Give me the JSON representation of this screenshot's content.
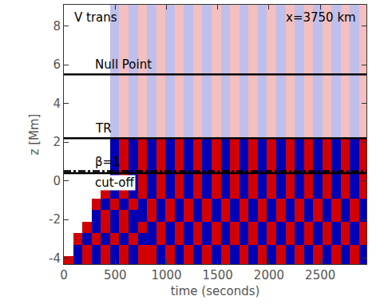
{
  "chart_data": {
    "type": "heatmap",
    "title": "V trans",
    "subtitle": "x=3750 km",
    "x_label": "time (seconds)",
    "y_label": "z [Mm]",
    "xlim": [
      0,
      2950
    ],
    "xticks": [
      0,
      500,
      1000,
      1500,
      2000,
      2500
    ],
    "ylim": [
      -4.3,
      9.1
    ],
    "yticks": [
      -4,
      -2,
      0,
      2,
      4,
      6,
      8
    ],
    "zlim": [
      -1,
      1
    ],
    "x": [
      45,
      135,
      225,
      315,
      405,
      495,
      585,
      675,
      765,
      855,
      945,
      1035,
      1125,
      1215,
      1305,
      1395,
      1485,
      1575,
      1665,
      1755,
      1845,
      1935,
      2025,
      2115,
      2205,
      2295,
      2385,
      2475,
      2565,
      2655,
      2745,
      2835,
      2925
    ],
    "y": [
      -4.2,
      -3.6,
      -3.0,
      -2.4,
      -1.8,
      -1.2,
      -0.6,
      0.0,
      0.6,
      1.2,
      1.8,
      2.6,
      3.6,
      4.6,
      5.6,
      6.6,
      7.6,
      8.6
    ],
    "z": [
      [
        1,
        -1,
        1,
        -1,
        1,
        -1,
        1,
        -1,
        1,
        1,
        -1,
        1,
        -1,
        1,
        -1,
        1,
        -1,
        1,
        -1,
        1,
        -1,
        1,
        -1,
        1,
        -1,
        1,
        -1,
        1,
        -1,
        1,
        -1,
        1,
        -1
      ],
      [
        0,
        -1,
        1,
        -1,
        1,
        -1,
        1,
        -1,
        1,
        1,
        -1,
        1,
        -1,
        1,
        -1,
        1,
        -1,
        1,
        -1,
        1,
        -1,
        1,
        -1,
        1,
        -1,
        1,
        -1,
        1,
        -1,
        1,
        -1,
        1,
        -1
      ],
      [
        0,
        1,
        -1,
        1,
        -1,
        1,
        -1,
        1,
        -1,
        -1,
        1,
        -1,
        1,
        -1,
        1,
        -1,
        1,
        -1,
        1,
        -1,
        1,
        -1,
        1,
        -1,
        1,
        -1,
        1,
        -1,
        1,
        -1,
        1,
        -1,
        1
      ],
      [
        0,
        0,
        1,
        -1,
        1,
        -1,
        1,
        -1,
        1,
        -1,
        1,
        -1,
        1,
        -1,
        1,
        -1,
        1,
        -1,
        1,
        -1,
        1,
        -1,
        1,
        -1,
        1,
        -1,
        1,
        -1,
        1,
        -1,
        1,
        -1,
        1
      ],
      [
        0,
        0,
        0,
        -1,
        1,
        -1,
        1,
        -1,
        -1,
        1,
        -1,
        1,
        -1,
        1,
        -1,
        1,
        -1,
        1,
        -1,
        1,
        -1,
        1,
        -1,
        1,
        -1,
        1,
        -1,
        1,
        -1,
        1,
        -1,
        1,
        -1
      ],
      [
        0,
        0,
        0,
        1,
        -1,
        1,
        -1,
        1,
        -1,
        1,
        -1,
        1,
        -1,
        1,
        -1,
        1,
        -1,
        1,
        -1,
        1,
        -1,
        1,
        -1,
        1,
        -1,
        1,
        -1,
        1,
        -1,
        1,
        -1,
        1,
        -1
      ],
      [
        0,
        0,
        0,
        0,
        1,
        -1,
        1,
        -1,
        1,
        -1,
        1,
        -1,
        1,
        -1,
        1,
        -1,
        1,
        -1,
        1,
        -1,
        1,
        -1,
        1,
        -1,
        1,
        -1,
        1,
        -1,
        1,
        -1,
        1,
        -1,
        1
      ],
      [
        0,
        0,
        0,
        0,
        0,
        -1,
        1,
        -1,
        1,
        -1,
        1,
        -1,
        1,
        -1,
        1,
        -1,
        1,
        -1,
        1,
        -1,
        1,
        -1,
        1,
        -1,
        1,
        -1,
        1,
        -1,
        1,
        -1,
        1,
        -1,
        1
      ],
      [
        0,
        0,
        0,
        0,
        0,
        -1,
        1,
        -1,
        1,
        -1,
        1,
        -1,
        1,
        -1,
        1,
        -1,
        1,
        -1,
        1,
        -1,
        1,
        -1,
        1,
        -1,
        1,
        -1,
        1,
        -1,
        1,
        -1,
        1,
        -1,
        1
      ],
      [
        0,
        0,
        0,
        0,
        0,
        -1,
        1,
        -1,
        1,
        -1,
        1,
        -1,
        1,
        -1,
        1,
        -1,
        1,
        -1,
        1,
        -1,
        1,
        -1,
        1,
        -1,
        1,
        -1,
        1,
        -1,
        1,
        -1,
        1,
        -1,
        1
      ],
      [
        0,
        0,
        0,
        0,
        0,
        -1,
        1,
        -1,
        1,
        -1,
        1,
        -1,
        1,
        -1,
        1,
        -1,
        1,
        -1,
        1,
        -1,
        1,
        -1,
        1,
        -1,
        1,
        -1,
        1,
        -1,
        1,
        -1,
        1,
        -1,
        1
      ],
      [
        0,
        0,
        0,
        0,
        0,
        -0.25,
        0.25,
        -0.25,
        0.25,
        -0.25,
        0.25,
        -0.25,
        0.25,
        -0.25,
        0.25,
        -0.25,
        0.25,
        -0.25,
        0.25,
        -0.25,
        0.25,
        -0.25,
        0.25,
        -0.25,
        0.25,
        -0.25,
        0.25,
        -0.25,
        0.25,
        -0.25,
        0.25,
        -0.25,
        0.25
      ],
      [
        0,
        0,
        0,
        0,
        0,
        -0.25,
        0.25,
        -0.25,
        0.25,
        -0.25,
        0.25,
        -0.25,
        0.25,
        -0.25,
        0.25,
        -0.25,
        0.25,
        -0.25,
        0.25,
        -0.25,
        0.25,
        -0.25,
        0.25,
        -0.25,
        0.25,
        -0.25,
        0.25,
        -0.25,
        0.25,
        -0.25,
        0.25,
        -0.25,
        0.25
      ],
      [
        0,
        0,
        0,
        0,
        0,
        -0.25,
        0.25,
        -0.25,
        0.25,
        -0.25,
        0.25,
        -0.25,
        0.25,
        -0.25,
        0.25,
        -0.25,
        0.25,
        -0.25,
        0.25,
        -0.25,
        0.25,
        -0.25,
        0.25,
        -0.25,
        0.25,
        -0.25,
        0.25,
        -0.25,
        0.25,
        -0.25,
        0.25,
        -0.25,
        0.25
      ],
      [
        0,
        0,
        0,
        0,
        0,
        -0.25,
        0.25,
        -0.25,
        0.25,
        -0.25,
        0.25,
        -0.25,
        0.25,
        -0.25,
        0.25,
        -0.25,
        0.25,
        -0.25,
        0.25,
        -0.25,
        0.25,
        -0.25,
        0.25,
        -0.25,
        0.25,
        -0.25,
        0.25,
        -0.25,
        0.25,
        -0.25,
        0.25,
        -0.25,
        0.25
      ],
      [
        0,
        0,
        0,
        0,
        0,
        -0.25,
        0.25,
        -0.25,
        0.25,
        -0.25,
        0.25,
        -0.25,
        0.25,
        -0.25,
        0.25,
        -0.25,
        0.25,
        -0.25,
        0.25,
        -0.25,
        0.25,
        -0.25,
        0.25,
        -0.25,
        0.25,
        -0.25,
        0.25,
        -0.25,
        0.25,
        -0.25,
        0.25,
        -0.25,
        0.25
      ],
      [
        0,
        0,
        0,
        0,
        0,
        -0.25,
        0.25,
        -0.25,
        0.25,
        -0.25,
        0.25,
        -0.25,
        0.25,
        -0.25,
        0.25,
        -0.25,
        0.25,
        -0.25,
        0.25,
        -0.25,
        0.25,
        -0.25,
        0.25,
        -0.25,
        0.25,
        -0.25,
        0.25,
        -0.25,
        0.25,
        -0.25,
        0.25,
        -0.25,
        0.25
      ],
      [
        0,
        0,
        0,
        0,
        0,
        -0.25,
        0.25,
        -0.25,
        0.25,
        -0.25,
        0.25,
        -0.25,
        0.25,
        -0.25,
        0.25,
        -0.25,
        0.25,
        -0.25,
        0.25,
        -0.25,
        0.25,
        -0.25,
        0.25,
        -0.25,
        0.25,
        -0.25,
        0.25,
        -0.25,
        0.25,
        -0.25,
        0.25,
        -0.25,
        0.25
      ]
    ],
    "hlines": [
      {
        "y": 5.5,
        "label": "Null Point",
        "line_style": "solid"
      },
      {
        "y": 2.2,
        "label": "TR",
        "line_style": "solid"
      },
      {
        "y": 0.5,
        "label": "β=1",
        "line_style": "dashdot"
      },
      {
        "y": 0.4,
        "label": "cut-off",
        "line_style": "solid"
      }
    ],
    "tick_labels": true
  }
}
